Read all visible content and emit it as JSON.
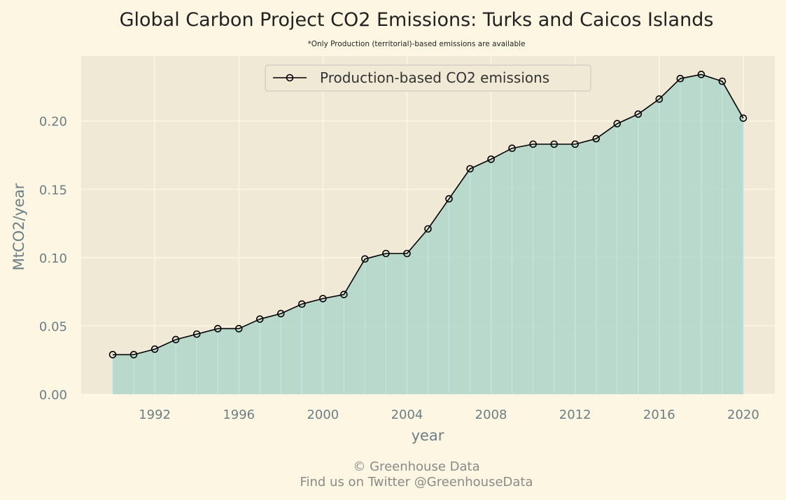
{
  "chart_data": {
    "type": "area",
    "title": "Global Carbon Project CO2 Emissions: Turks and Caicos Islands",
    "subtitle": "*Only Production (territorial)-based emissions are available",
    "xlabel": "year",
    "ylabel": "MtCO2/year",
    "x": [
      1990,
      1991,
      1992,
      1993,
      1994,
      1995,
      1996,
      1997,
      1998,
      1999,
      2000,
      2001,
      2002,
      2003,
      2004,
      2005,
      2006,
      2007,
      2008,
      2009,
      2010,
      2011,
      2012,
      2013,
      2014,
      2015,
      2016,
      2017,
      2018,
      2019,
      2020
    ],
    "series": [
      {
        "name": "Production-based CO2 emissions",
        "values": [
          0.029,
          0.029,
          0.033,
          0.04,
          0.044,
          0.048,
          0.048,
          0.055,
          0.059,
          0.066,
          0.07,
          0.073,
          0.099,
          0.103,
          0.103,
          0.121,
          0.143,
          0.165,
          0.172,
          0.18,
          0.183,
          0.183,
          0.183,
          0.187,
          0.198,
          0.205,
          0.216,
          0.231,
          0.234,
          0.229,
          0.202
        ]
      }
    ],
    "xticks": [
      "1992",
      "1996",
      "2000",
      "2004",
      "2008",
      "2012",
      "2016",
      "2020"
    ],
    "yticks": [
      "0.00",
      "0.05",
      "0.10",
      "0.15",
      "0.20"
    ],
    "xlim": [
      1988.5,
      2021.5
    ],
    "ylim": [
      0,
      0.2475
    ],
    "grid": true,
    "legend_position": "top-center",
    "colors": {
      "background": "#fdf6e3",
      "plot_background": "#f0e9d6",
      "grid": "#fdf6e3",
      "fill": "#a8d5c8",
      "line": "#000000",
      "text": "#222222",
      "tick_text": "#6b7f85"
    }
  },
  "footer": {
    "line1": "© Greenhouse Data",
    "line2": "Find us on Twitter @GreenhouseData"
  }
}
